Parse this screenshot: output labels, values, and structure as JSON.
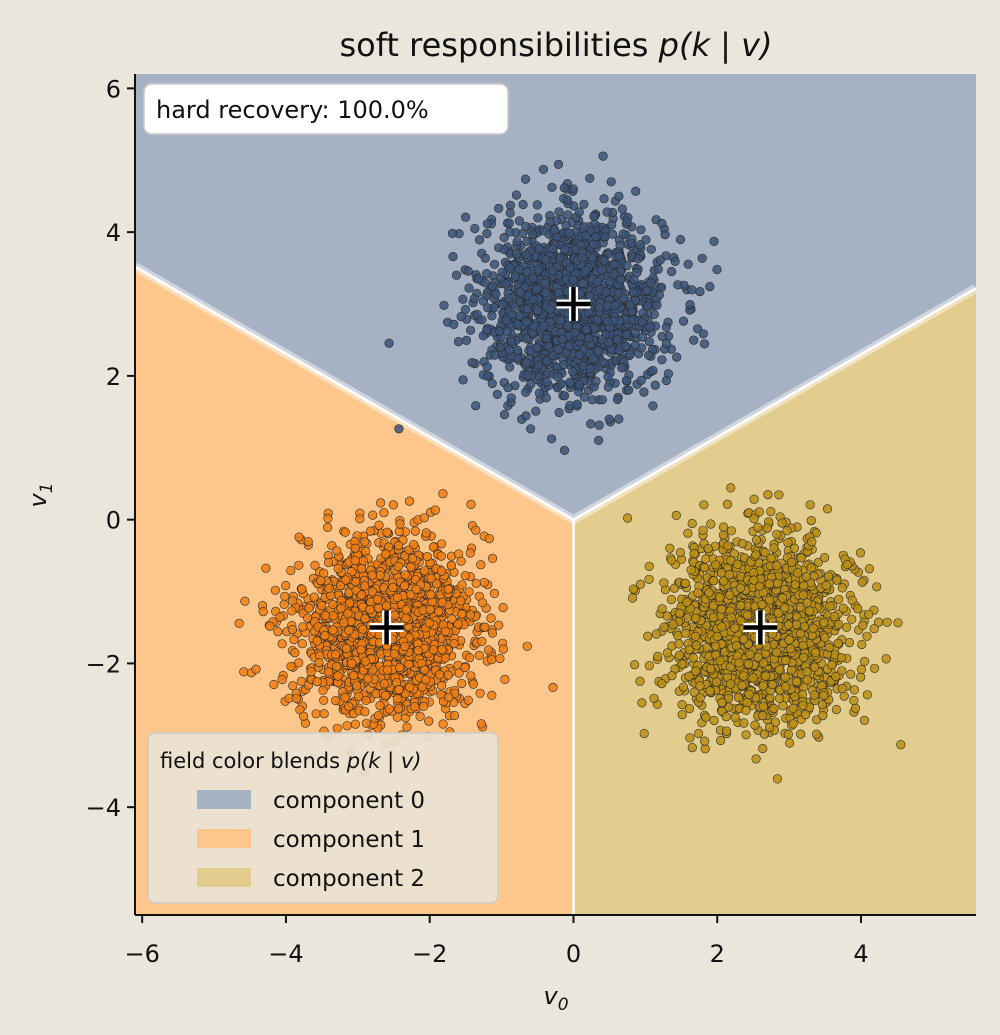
{
  "chart_data": {
    "type": "scatter",
    "title": "soft responsibilities p(k | v)",
    "xlabel": "v0",
    "ylabel": "v1",
    "xlim": [
      -6.1,
      5.6
    ],
    "ylim": [
      -5.5,
      6.2
    ],
    "xticks": [
      -6,
      -4,
      -2,
      0,
      2,
      4
    ],
    "yticks": [
      -4,
      -2,
      0,
      2,
      4,
      6
    ],
    "grid": false,
    "annotation": "hard recovery: 100.0%",
    "legend": {
      "title": "field color blends p(k | v)",
      "placement": "lower-left",
      "entries": [
        "component 0",
        "component 1",
        "component 2"
      ]
    },
    "region_boundary": {
      "x": [
        -6.1,
        0,
        5.6
      ],
      "y": [
        3.52,
        0,
        3.22
      ],
      "vertical_from_origin_to_y": -5.5
    },
    "series": [
      {
        "center": [
          0,
          3
        ],
        "spread": 0.62,
        "count": 1700,
        "point_color": "#3B5477",
        "field_color": "#A6B2C3"
      },
      {
        "center": [
          -2.6,
          -1.5
        ],
        "spread": 0.62,
        "count": 1700,
        "point_color": "#F07E10",
        "field_color": "#FDC68B"
      },
      {
        "center": [
          2.6,
          -1.5
        ],
        "spread": 0.62,
        "count": 1700,
        "point_color": "#BB8E14",
        "field_color": "#E3CD8E"
      }
    ],
    "center_marker": "+"
  }
}
